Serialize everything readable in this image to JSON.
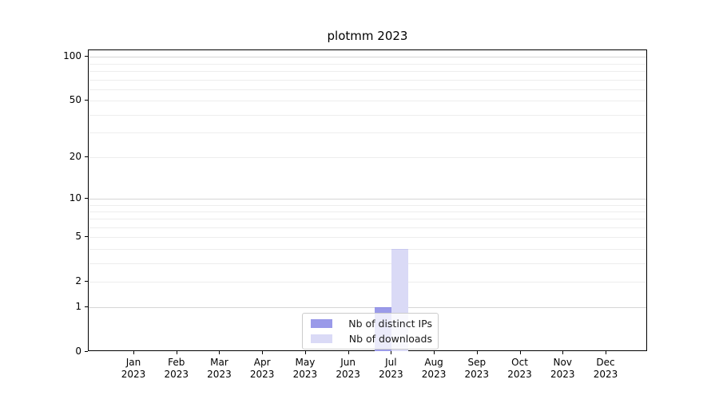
{
  "chart_data": {
    "type": "bar",
    "title": "plotmm 2023",
    "categories": [
      "Jan",
      "Feb",
      "Mar",
      "Apr",
      "May",
      "Jun",
      "Jul",
      "Aug",
      "Sep",
      "Oct",
      "Nov",
      "Dec"
    ],
    "category_year": "2023",
    "series": [
      {
        "name": "Nb of distinct IPs",
        "color": "#9a9ae9",
        "edge_color": "#8c8ce2",
        "values": [
          0,
          0,
          0,
          0,
          0,
          0,
          1,
          0,
          0,
          0,
          0,
          0
        ]
      },
      {
        "name": "Nb of downloads",
        "color": "#dadaf6",
        "edge_color": "#c9c9ef",
        "values": [
          0,
          0,
          0,
          0,
          0,
          0,
          4,
          0,
          0,
          0,
          0,
          0
        ]
      }
    ],
    "yticks": [
      0,
      1,
      2,
      5,
      10,
      20,
      50,
      100
    ],
    "ytick_labels": [
      "0",
      "1",
      "2",
      "5",
      "10",
      "20",
      "50",
      "100"
    ],
    "minor_grid_values": [
      2,
      3,
      4,
      5,
      6,
      7,
      8,
      9,
      20,
      30,
      40,
      50,
      60,
      70,
      80,
      90
    ],
    "major_grid_values": [
      1,
      10,
      100
    ],
    "scale": "log1p",
    "ylim": [
      0,
      111
    ],
    "xlabel": "",
    "ylabel": "",
    "grid": "horizontal",
    "legend_position": "bottom-center"
  }
}
